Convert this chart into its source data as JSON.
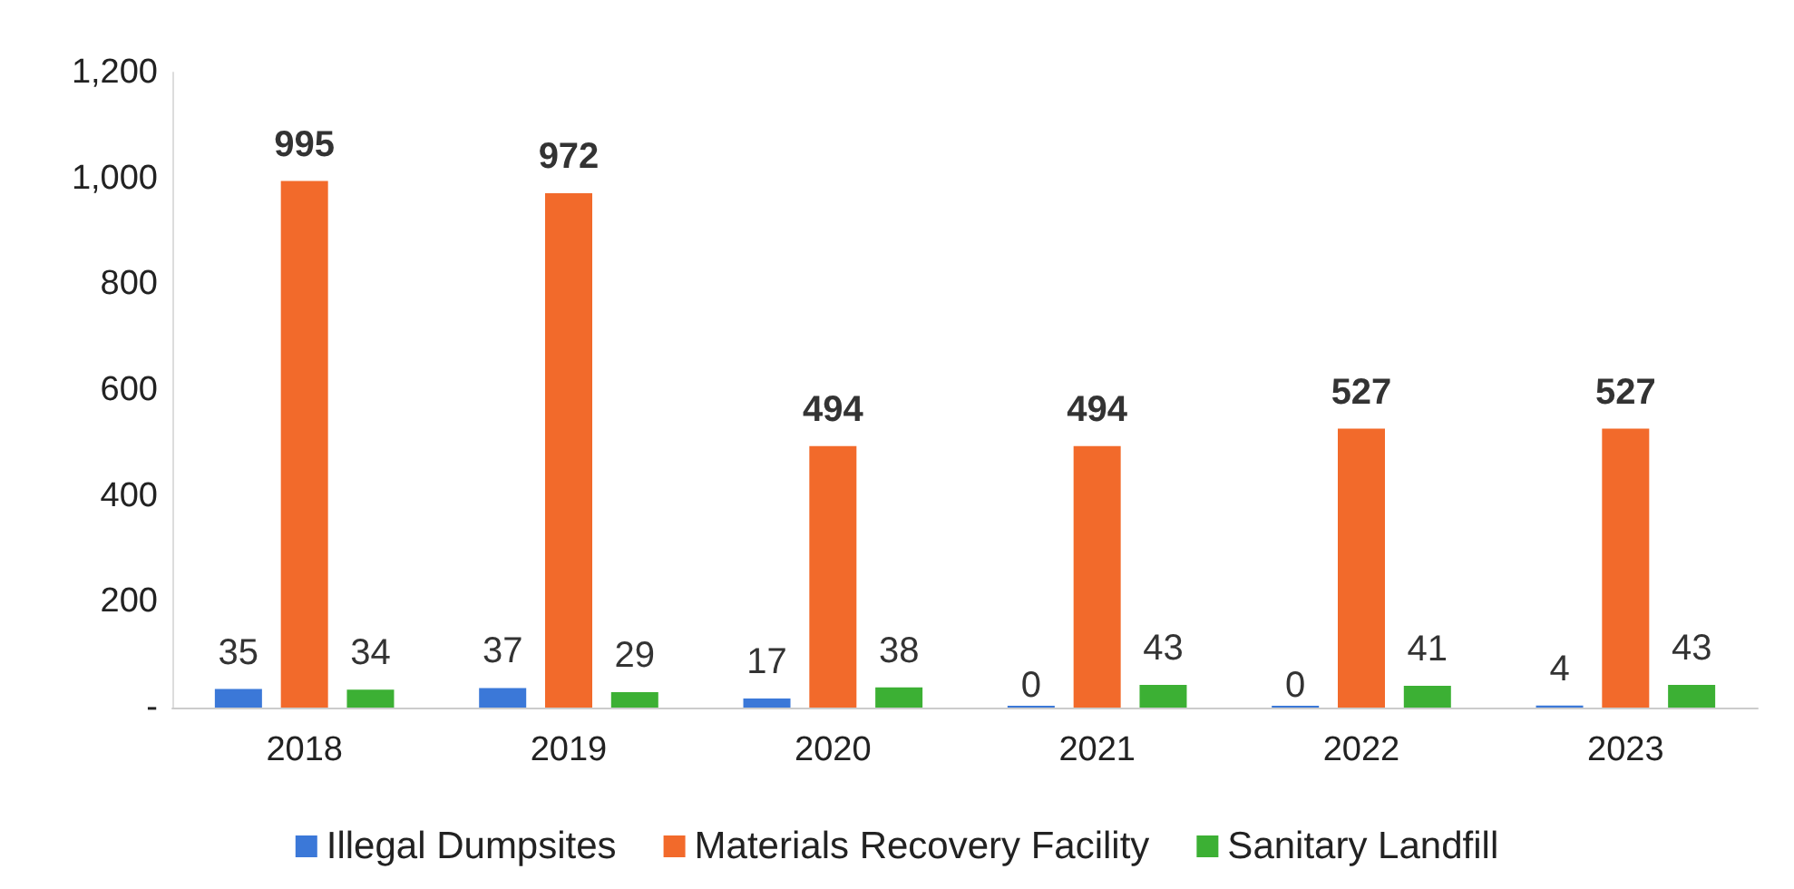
{
  "chart_data": {
    "type": "bar",
    "categories": [
      "2018",
      "2019",
      "2020",
      "2021",
      "2022",
      "2023"
    ],
    "series": [
      {
        "name": "Illegal Dumpsites",
        "color": "#3b78d8",
        "values": [
          35,
          37,
          17,
          0,
          0,
          4
        ]
      },
      {
        "name": "Materials Recovery Facility",
        "color": "#f26a2b",
        "values": [
          995,
          972,
          494,
          494,
          527,
          527
        ]
      },
      {
        "name": "Sanitary Landfill",
        "color": "#3cb034",
        "values": [
          34,
          29,
          38,
          43,
          41,
          43
        ]
      }
    ],
    "ylim": [
      0,
      1200
    ],
    "yticks": [
      {
        "value": 0,
        "label": "-"
      },
      200,
      400,
      600,
      800,
      {
        "value": 1000,
        "label": "1,000"
      },
      {
        "value": 1200,
        "label": "1,200"
      }
    ],
    "data_labels": true,
    "grid": false,
    "legend": "bottom"
  }
}
